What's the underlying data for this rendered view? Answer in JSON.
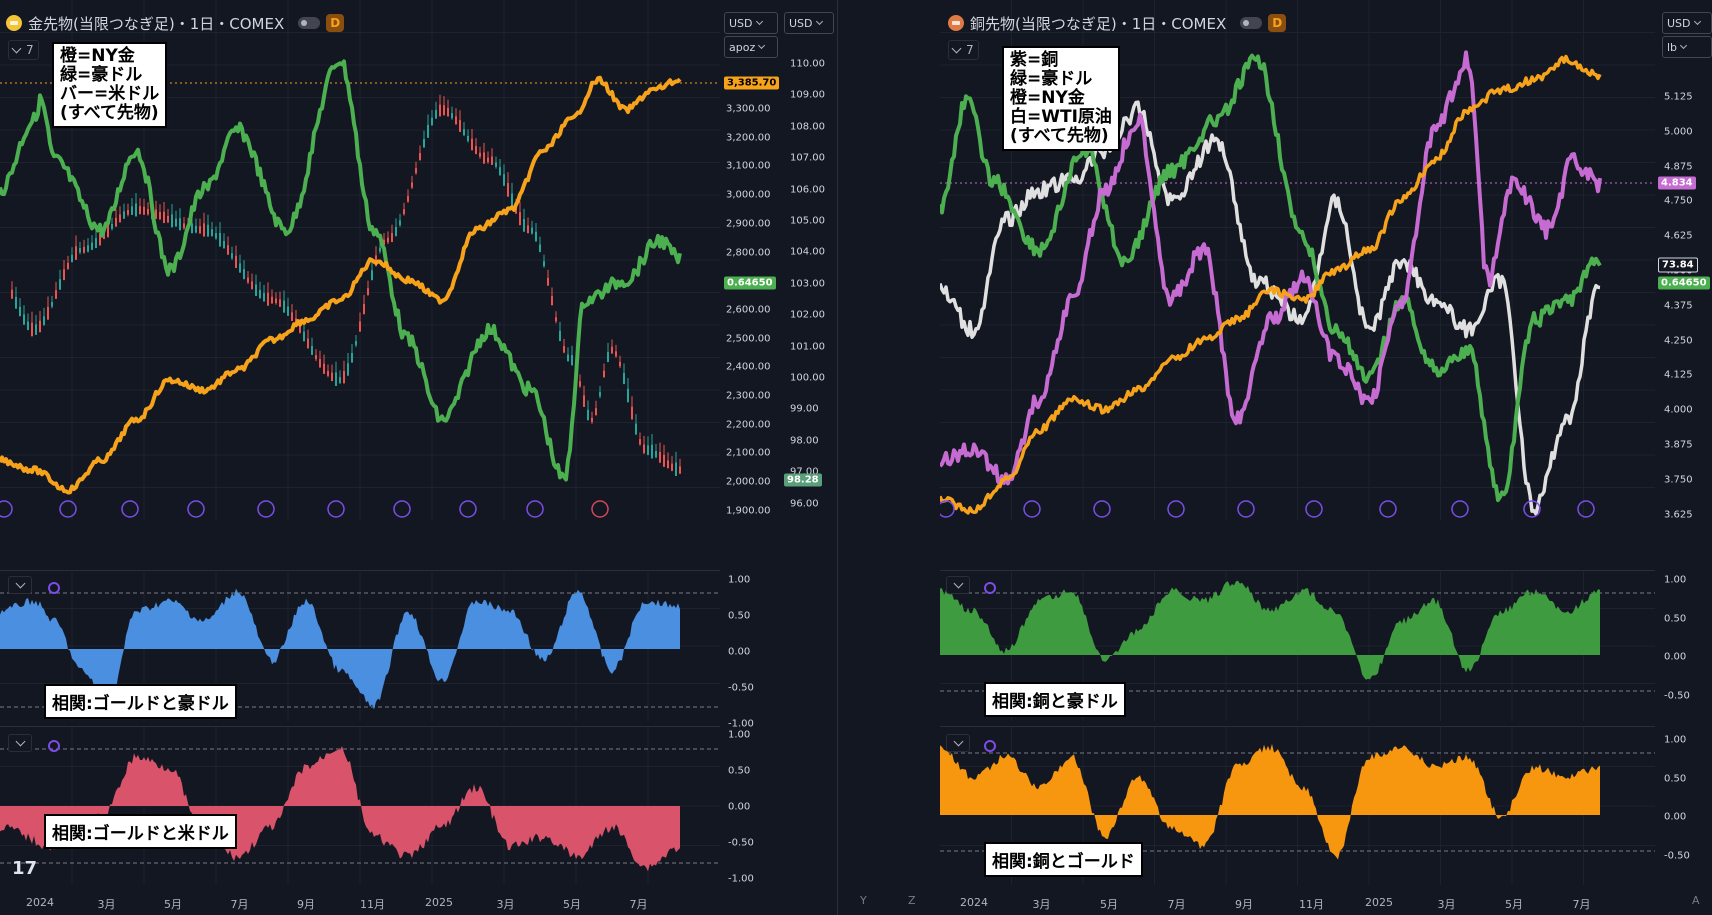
{
  "left": {
    "header": {
      "title": "金先物(当限つなぎ足)・1日・COMEX",
      "badge": "D",
      "collapse_count": "7"
    },
    "legend_text": "橙=NY金\n緑=豪ドル\nバー=米ドル\n(すべて先物)",
    "unit_buttons": {
      "currency": "USD",
      "unit": "apoz",
      "currency2": "USD"
    },
    "gold_axis_ticks": [
      "3,300.00",
      "3,200.00",
      "3,100.00",
      "3,000.00",
      "2,900.00",
      "2,800.00",
      "2,700.00",
      "2,600.00",
      "2,500.00",
      "2,400.00",
      "2,300.00",
      "2,200.00",
      "2,100.00",
      "2,000.00",
      "1,900.00"
    ],
    "dollar_axis_ticks": [
      "110.00",
      "109.00",
      "108.00",
      "107.00",
      "106.00",
      "105.00",
      "104.00",
      "103.00",
      "102.00",
      "101.00",
      "100.00",
      "99.00",
      "98.00",
      "97.00",
      "96.00"
    ],
    "price_tags": {
      "gold_last": "3,385.70",
      "aud_last": "0.64650",
      "dxy_last": "98.28"
    },
    "corr1_label": "相関:ゴールドと豪ドル",
    "corr2_label": "相関:ゴールドと米ドル",
    "corr_axis_ticks": [
      "1.00",
      "0.50",
      "0.00",
      "-0.50",
      "-1.00"
    ],
    "date_labels": [
      "2024",
      "3月",
      "5月",
      "7月",
      "9月",
      "11月",
      "2025",
      "3月",
      "5月",
      "7月"
    ]
  },
  "right": {
    "header": {
      "title": "銅先物(当限つなぎ足)・1日・COMEX",
      "badge": "D",
      "collapse_count": "7"
    },
    "legend_text": "紫=銅\n緑=豪ドル\n橙=NY金\n白=WTI原油\n(すべて先物)",
    "unit_buttons": {
      "currency": "USD",
      "unit": "lb"
    },
    "copper_axis_ticks": [
      "5.125",
      "5.000",
      "4.875",
      "4.750",
      "4.625",
      "4.500",
      "4.375",
      "4.250",
      "4.125",
      "4.000",
      "3.875",
      "3.750",
      "3.625"
    ],
    "price_tags": {
      "copper_last": "4.834",
      "wti_last": "73.84",
      "aud_last": "0.64650"
    },
    "corr1_label": "相関:銅と豪ドル",
    "corr2_label": "相関:銅とゴールド",
    "corr1_axis_ticks": [
      "1.00",
      "0.50",
      "0.00",
      "-0.50"
    ],
    "corr2_axis_ticks": [
      "1.00",
      "0.50",
      "0.00",
      "-0.50"
    ],
    "date_labels": [
      "2024",
      "3月",
      "5月",
      "7月",
      "9月",
      "11月",
      "2025",
      "3月",
      "5月",
      "7月"
    ],
    "scale_buttons": [
      "Y",
      "Z",
      "A"
    ]
  },
  "colors": {
    "gold_line": "#f7a21b",
    "aud_line": "#4caf50",
    "copper_line": "#c66bd1",
    "wti_line": "#e0e0e0",
    "corr_gold_aud": "#4a8fe0",
    "corr_gold_usd": "#d9536a",
    "corr_copper_aud": "#3f9b3f",
    "corr_copper_gold": "#f7960f",
    "candle_up": "#26a69a",
    "candle_down": "#ef5350"
  }
}
